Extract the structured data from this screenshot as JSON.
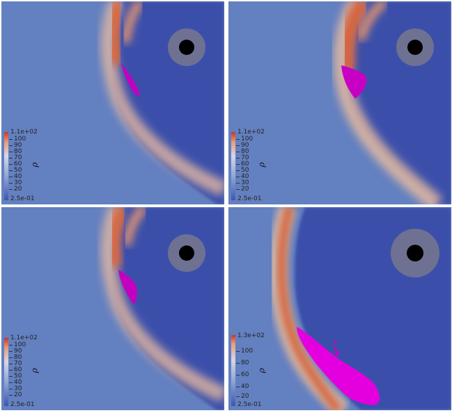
{
  "colors": {
    "background": "#5f7fbe",
    "inner_region": "#3a4fa8",
    "shock_hot": "#d86a45",
    "shock_mid": "#e9b08f",
    "isosurface": "#d000c8",
    "planet_core": "#000000",
    "planet_halo": "#6b6f8a"
  },
  "panels": [
    {
      "id": "p1",
      "variable": "ρ",
      "colorbar": {
        "max_label": "1.1e+02",
        "min_label": "2.5e-01",
        "ticks": [
          "100",
          "90",
          "80",
          "70",
          "60",
          "50",
          "40",
          "30",
          "20"
        ]
      }
    },
    {
      "id": "p2",
      "variable": "ρ",
      "colorbar": {
        "max_label": "1.1e+02",
        "min_label": "2.5e-01",
        "ticks": [
          "100",
          "90",
          "80",
          "70",
          "60",
          "50",
          "40",
          "30",
          "20"
        ]
      }
    },
    {
      "id": "p3",
      "variable": "ρ",
      "colorbar": {
        "max_label": "1.1e+02",
        "min_label": "2.5e-01",
        "ticks": [
          "100",
          "90",
          "80",
          "70",
          "60",
          "50",
          "40",
          "30",
          "20"
        ]
      }
    },
    {
      "id": "p4",
      "variable": "ρ",
      "colorbar": {
        "max_label": "1.3e+02",
        "min_label": "2.5e-01",
        "ticks": [
          "100",
          "80",
          "60",
          "40",
          "20"
        ]
      }
    }
  ]
}
